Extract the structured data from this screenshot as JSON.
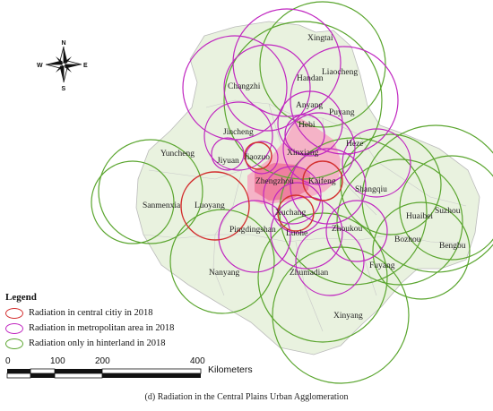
{
  "colors": {
    "central_city": "#d32f2f",
    "metropolitan": "#c026c0",
    "hinterland": "#5aa52e",
    "region_fill": "#e9f2df",
    "metro_fill": "#f5b3c7",
    "core_fill": "#ef7fa0"
  },
  "compass": {
    "north": "N",
    "south": "S",
    "east": "E",
    "west": "W"
  },
  "cities": [
    {
      "name": "Xingtai"
    },
    {
      "name": "Handan"
    },
    {
      "name": "Liaocheng"
    },
    {
      "name": "Changzhi"
    },
    {
      "name": "Anyang"
    },
    {
      "name": "Hebi"
    },
    {
      "name": "Puyang"
    },
    {
      "name": "Jincheng"
    },
    {
      "name": "Heze"
    },
    {
      "name": "Xinxiang"
    },
    {
      "name": "Yuncheng"
    },
    {
      "name": "Jiyuan"
    },
    {
      "name": "Jiaozuo"
    },
    {
      "name": "Zhengzhou"
    },
    {
      "name": "Kaifeng"
    },
    {
      "name": "Shangqiu"
    },
    {
      "name": "Sanmenxia"
    },
    {
      "name": "Luoyang"
    },
    {
      "name": "Huaibei"
    },
    {
      "name": "Suzhou"
    },
    {
      "name": "Xuchang"
    },
    {
      "name": "Pingdingshan"
    },
    {
      "name": "Luohe"
    },
    {
      "name": "Zhoukou"
    },
    {
      "name": "Bozhou"
    },
    {
      "name": "Bengbu"
    },
    {
      "name": "Fuyang"
    },
    {
      "name": "Nanyang"
    },
    {
      "name": "Zhumadian"
    },
    {
      "name": "Xinyang"
    }
  ],
  "legend": {
    "title": "Legend",
    "items": [
      {
        "label": "Radiation in central citiy in 2018",
        "color": "#d32f2f"
      },
      {
        "label": "Radiation  in metropolitan area in 2018",
        "color": "#c026c0"
      },
      {
        "label": "Radiation only in hinterland in 2018",
        "color": "#5aa52e"
      }
    ]
  },
  "scale": {
    "ticks": [
      "0",
      "100",
      "200",
      "400"
    ],
    "unit": "Kilometers"
  },
  "caption": "(d) Radiation in the Central Plains Urban Agglomeration"
}
